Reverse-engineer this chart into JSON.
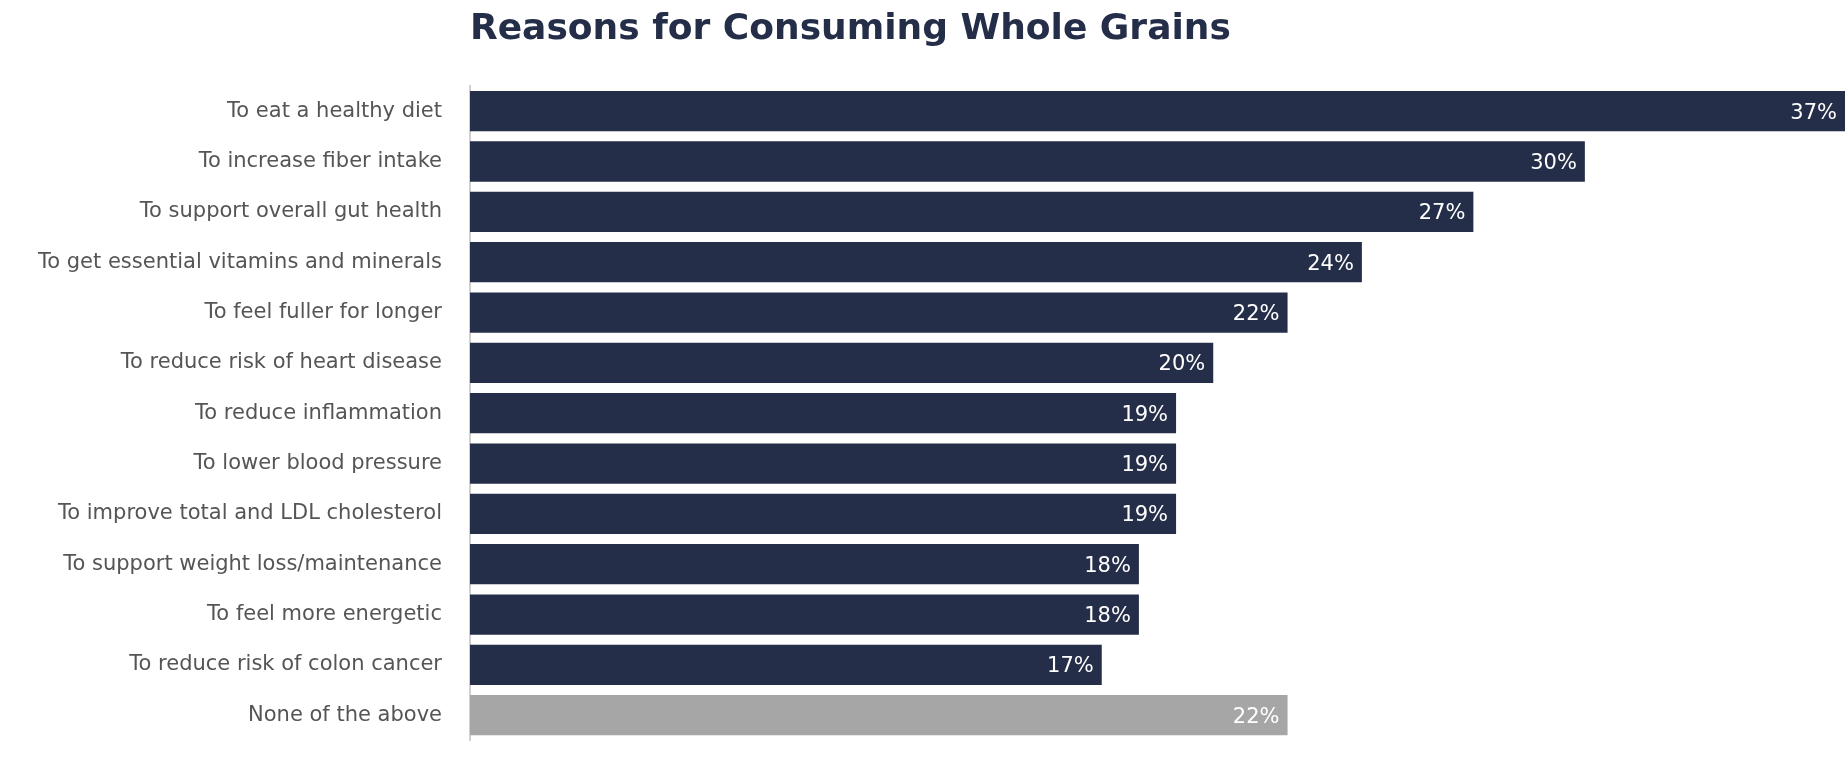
{
  "chart_data": {
    "type": "bar",
    "orientation": "horizontal",
    "title": "Reasons for Consuming Whole Grains",
    "categories": [
      "To eat a healthy diet",
      "To increase fiber intake",
      "To support overall gut health",
      "To get essential vitamins and minerals",
      "To feel fuller for longer",
      "To reduce risk of heart disease",
      "To reduce inflammation",
      "To lower blood pressure",
      "To improve total and LDL cholesterol",
      "To support weight loss/maintenance",
      "To feel more energetic",
      "To reduce risk of colon cancer",
      "None of the above"
    ],
    "values": [
      37,
      30,
      27,
      24,
      22,
      20,
      19,
      19,
      19,
      18,
      18,
      17,
      22
    ],
    "value_labels": [
      "37%",
      "30%",
      "27%",
      "24%",
      "22%",
      "20%",
      "19%",
      "19%",
      "19%",
      "18%",
      "18%",
      "17%",
      "22%"
    ],
    "colors": [
      "#252e48",
      "#252e48",
      "#252e48",
      "#252e48",
      "#252e48",
      "#252e48",
      "#252e48",
      "#252e48",
      "#252e48",
      "#252e48",
      "#252e48",
      "#252e48",
      "#a6a6a6"
    ],
    "legend": false
  }
}
